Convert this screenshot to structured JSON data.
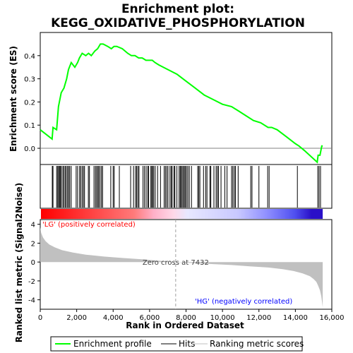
{
  "chart_data": {
    "type": "line",
    "title_line1": "Enrichment plot:",
    "title_line2": "KEGG_OXIDATIVE_PHOSPHORYLATION",
    "es_panel": {
      "ylabel": "Enrichment score (ES)",
      "ylim": [
        -0.07,
        0.5
      ],
      "yticks": [
        0.0,
        0.1,
        0.2,
        0.3,
        0.4
      ],
      "ytick_labels": [
        "0.0",
        "0.1",
        "0.2",
        "0.3",
        "0.4"
      ],
      "series": [
        {
          "name": "Enrichment profile",
          "color": "#00ff00",
          "x": [
            0,
            650,
            700,
            900,
            1000,
            1150,
            1300,
            1450,
            1550,
            1700,
            1900,
            2050,
            2150,
            2300,
            2500,
            2650,
            2800,
            3000,
            3150,
            3300,
            3450,
            3700,
            3900,
            4050,
            4200,
            4500,
            4800,
            5000,
            5200,
            5400,
            5600,
            5800,
            6000,
            6150,
            6300,
            6500,
            7000,
            7500,
            8000,
            8500,
            9000,
            9500,
            10000,
            10500,
            10900,
            11300,
            11700,
            12100,
            12500,
            12700,
            13000,
            13500,
            14000,
            14200,
            14500,
            15200,
            15250,
            15350,
            15450,
            15500
          ],
          "y": [
            0.08,
            0.04,
            0.09,
            0.08,
            0.18,
            0.24,
            0.26,
            0.3,
            0.34,
            0.37,
            0.35,
            0.37,
            0.39,
            0.41,
            0.4,
            0.41,
            0.4,
            0.42,
            0.43,
            0.45,
            0.45,
            0.44,
            0.43,
            0.44,
            0.44,
            0.43,
            0.41,
            0.4,
            0.4,
            0.39,
            0.39,
            0.38,
            0.38,
            0.38,
            0.37,
            0.36,
            0.34,
            0.32,
            0.29,
            0.26,
            0.23,
            0.21,
            0.19,
            0.18,
            0.16,
            0.14,
            0.12,
            0.11,
            0.09,
            0.09,
            0.08,
            0.05,
            0.02,
            0.01,
            -0.01,
            -0.06,
            -0.03,
            -0.03,
            0.01,
            0.01
          ]
        }
      ]
    },
    "hits": [
      660,
      700,
      900,
      960,
      1010,
      1060,
      1110,
      1160,
      1240,
      1300,
      1370,
      1430,
      1500,
      1560,
      1620,
      1700,
      1970,
      2050,
      2160,
      2220,
      2300,
      2370,
      2430,
      2640,
      2700,
      2950,
      3030,
      3090,
      3160,
      3210,
      3280,
      3360,
      3420,
      3870,
      4000,
      4060,
      4340,
      4960,
      5120,
      5230,
      5290,
      5360,
      5420,
      5640,
      5720,
      5810,
      5900,
      5950,
      6070,
      6120,
      6170,
      6230,
      6310,
      6440,
      6600,
      6800,
      6870,
      6940,
      7010,
      7120,
      7190,
      7240,
      7340,
      7390,
      7500,
      7620,
      7680,
      7730,
      7790,
      7850,
      7910,
      7960,
      8030,
      8100,
      8180,
      8300,
      8640,
      8700,
      8760,
      8960,
      9080,
      9150,
      9310,
      9360,
      9530,
      9650,
      9720,
      9780,
      9920,
      10130,
      10250,
      10500,
      10570,
      10650,
      10710,
      10860,
      11550,
      11620,
      12000,
      12480,
      12560,
      14110,
      15230,
      15300,
      15380
    ],
    "ranking_panel": {
      "ylabel": "Ranked list metric (Signal2Noise)",
      "ylim": [
        -5,
        4.5
      ],
      "yticks": [
        4,
        2,
        0,
        -2,
        -4
      ],
      "ytick_labels": [
        "4",
        "2",
        "0",
        "-2",
        "-4"
      ],
      "curve_x": [
        0,
        50,
        150,
        300,
        500,
        800,
        1200,
        1800,
        2500,
        3500,
        4500,
        5500,
        6500,
        7432,
        8500,
        9500,
        10500,
        11500,
        12500,
        13300,
        13900,
        14400,
        14800,
        15000,
        15150,
        15250,
        15350,
        15420,
        15460,
        15500
      ],
      "curve_y": [
        3.7,
        3.1,
        2.6,
        2.2,
        1.85,
        1.55,
        1.25,
        1.0,
        0.78,
        0.58,
        0.43,
        0.3,
        0.15,
        0.0,
        -0.12,
        -0.22,
        -0.32,
        -0.45,
        -0.58,
        -0.75,
        -0.95,
        -1.2,
        -1.5,
        -1.8,
        -2.1,
        -2.5,
        -3.0,
        -3.6,
        -4.2,
        -4.8
      ],
      "fill_color": "#c0c0c0",
      "zero_cross_label": "Zero cross at 7432",
      "zero_cross_x": 7432,
      "positive_label": "'LG' (positively correlated)",
      "negative_label": "'HG' (negatively correlated)",
      "positive_color": "#ff0000",
      "negative_color": "#0000ff"
    },
    "x_axis": {
      "label": "Rank in Ordered Dataset",
      "xlim": [
        0,
        16000
      ],
      "ticks": [
        0,
        2000,
        4000,
        6000,
        8000,
        10000,
        12000,
        14000,
        16000
      ],
      "tick_labels": [
        "0",
        "2,000",
        "4,000",
        "6,000",
        "8,000",
        "10,000",
        "12,000",
        "14,000",
        "16,000"
      ],
      "data_max": 15500
    },
    "legend": {
      "items": [
        {
          "label": "Enrichment profile",
          "color": "#00ff00"
        },
        {
          "label": "Hits",
          "color": "#000000"
        },
        {
          "label": "Ranking metric scores",
          "color": "#c0c0c0"
        }
      ]
    }
  }
}
